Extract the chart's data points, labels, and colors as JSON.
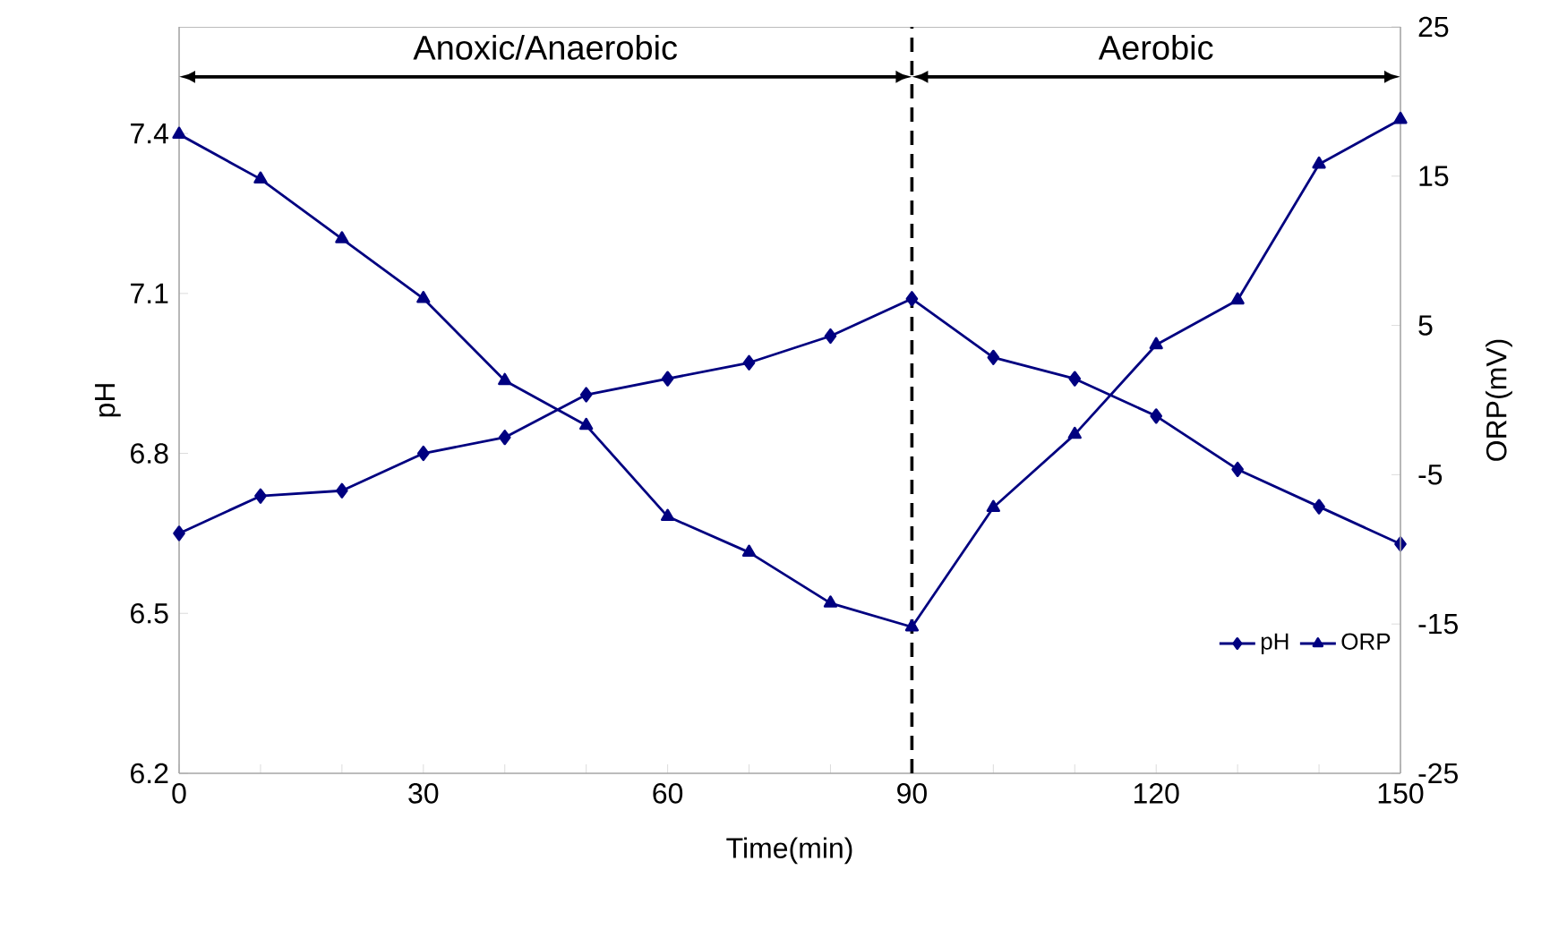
{
  "chart_data": {
    "type": "line",
    "xlabel": "Time(min)",
    "ylabel": "pH",
    "y2label": "ORP(mV)",
    "x": [
      0,
      10,
      20,
      30,
      40,
      50,
      60,
      70,
      80,
      90,
      100,
      110,
      120,
      130,
      140,
      150
    ],
    "series": [
      {
        "name": "pH",
        "color": "#000080",
        "marker": "diamond",
        "values": [
          6.65,
          6.72,
          6.73,
          6.8,
          6.83,
          6.91,
          6.94,
          6.97,
          7.02,
          7.09,
          6.98,
          6.94,
          6.87,
          6.77,
          6.7,
          6.63
        ]
      },
      {
        "name": "ORP",
        "color": "#000080",
        "marker": "triangle",
        "axis": "y2",
        "values": [
          17.8,
          14.8,
          10.8,
          6.8,
          1.3,
          -1.7,
          -7.8,
          -10.2,
          -13.6,
          -15.2,
          -7.2,
          -2.3,
          3.7,
          6.7,
          15.8,
          18.8
        ]
      }
    ],
    "xlim": [
      0,
      150
    ],
    "xticks": [
      0,
      {
        "value": 10,
        "label": null
      },
      {
        "value": 20,
        "label": null
      },
      30,
      {
        "value": 40,
        "label": null
      },
      {
        "value": 50,
        "label": null
      },
      60,
      {
        "value": 70,
        "label": null
      },
      {
        "value": 80,
        "label": null
      },
      90,
      {
        "value": 100,
        "label": null
      },
      {
        "value": 110,
        "label": null
      },
      120,
      {
        "value": 130,
        "label": null
      },
      {
        "value": 140,
        "label": null
      },
      150
    ],
    "ylim": [
      6.2,
      7.6
    ],
    "yticks": [
      6.2,
      6.5,
      6.8,
      7.1,
      7.4
    ],
    "y2lim": [
      -25,
      25
    ],
    "y2ticks": [
      -25,
      -15,
      -5,
      5,
      15,
      25
    ],
    "ref_lines": [
      {
        "axis": "x",
        "value": 90,
        "color": "#000000",
        "line_style": "dashed"
      }
    ],
    "annotations": [
      "Anoxic/Anaerobic",
      "Aerobic"
    ],
    "legend": "bottom right",
    "grid": false,
    "line_style": "solid"
  }
}
